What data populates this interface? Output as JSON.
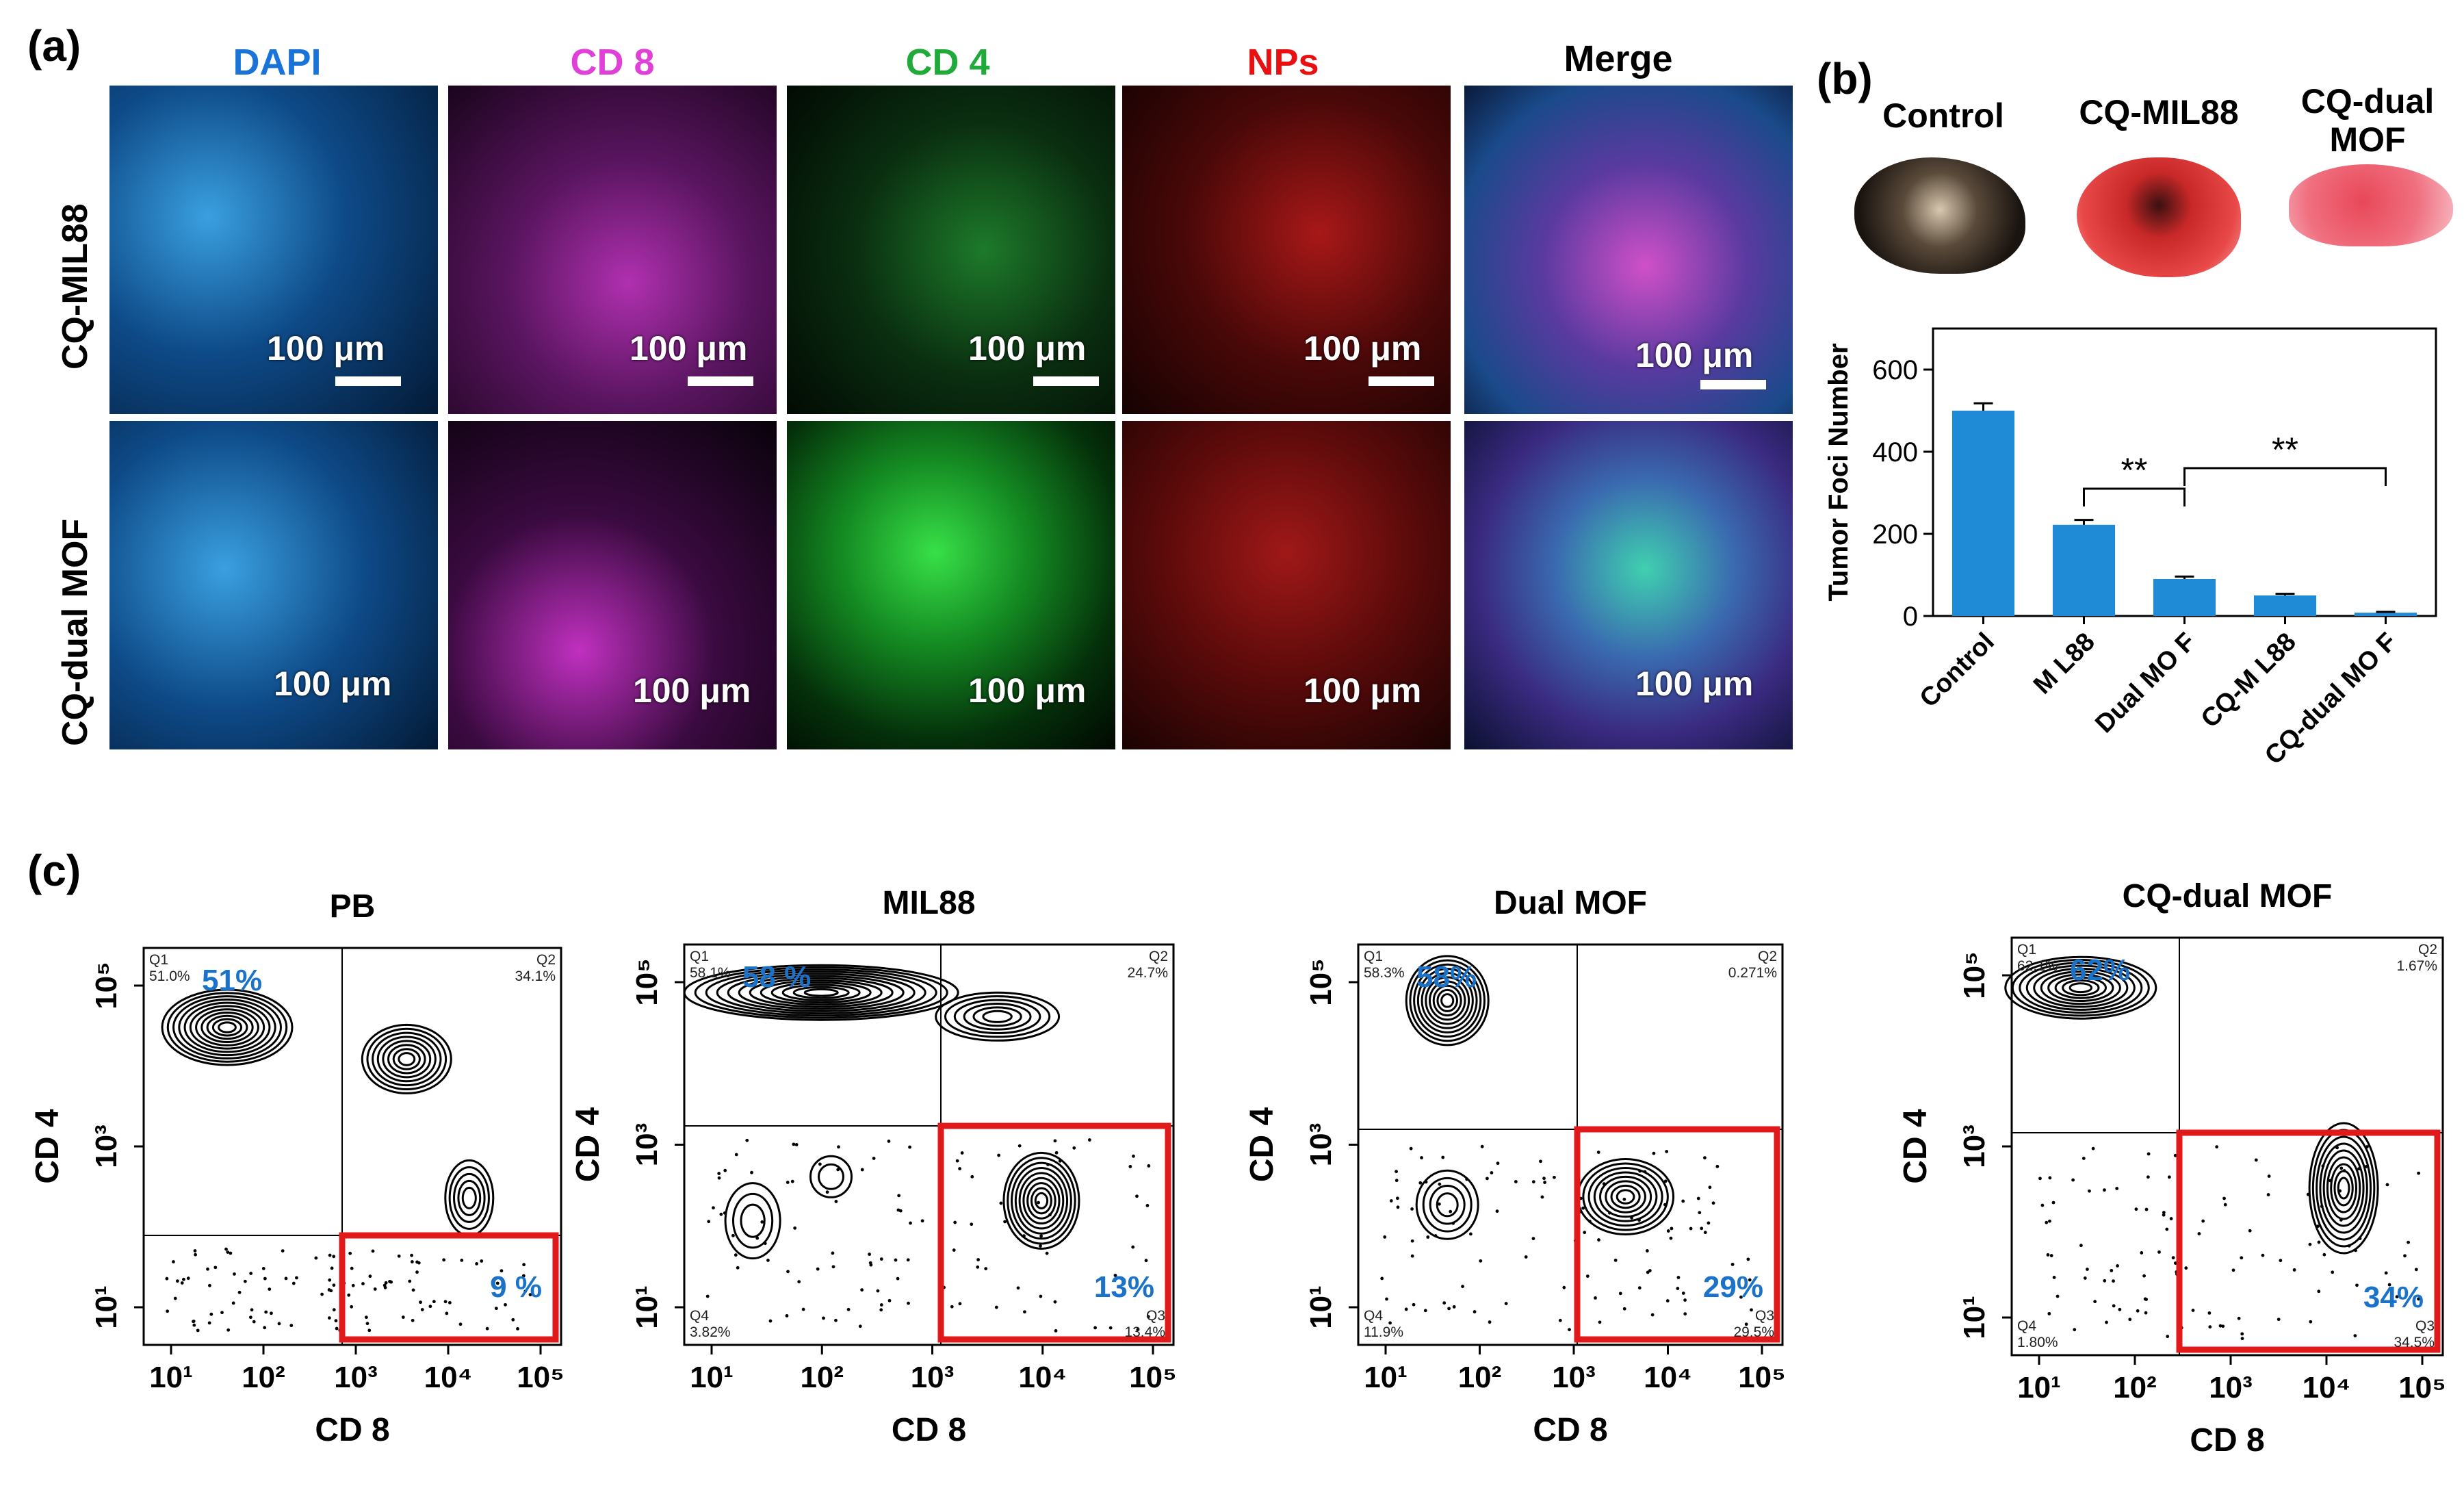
{
  "panel_a": {
    "label": "(a)",
    "columns": [
      {
        "label": "DAPI",
        "color": "#1a73d9"
      },
      {
        "label": "CD 8",
        "color": "#e040d8"
      },
      {
        "label": "CD 4",
        "color": "#1faa3a"
      },
      {
        "label": "NPs",
        "color": "#e81010"
      },
      {
        "label": "Merge",
        "color": "#000000"
      }
    ],
    "rows": [
      "CQ-MIL88",
      "CQ-dual MOF"
    ],
    "scale_label": "100 μm"
  },
  "panel_b": {
    "label": "(b)",
    "organs": [
      "Control",
      "CQ-MIL88",
      "CQ-dual\nMOF"
    ]
  },
  "panel_c": {
    "label": "(c)",
    "plots": [
      {
        "title": "PB",
        "q1": "Q1\n51.0%",
        "q2": "Q2\n34.1%",
        "q3": "",
        "q4": "",
        "big_q1": "51%",
        "big_q3": "9 %"
      },
      {
        "title": "MIL88",
        "q1": "Q1\n58.1%",
        "q2": "Q2\n24.7%",
        "q3": "Q3\n13.4%",
        "q4": "Q4\n3.82%",
        "big_q1": "58 %",
        "big_q3": "13%"
      },
      {
        "title": "Dual  MOF",
        "q1": "Q1\n58.3%",
        "q2": "Q2\n0.271%",
        "q3": "Q3\n29.5%",
        "q4": "Q4\n11.9%",
        "big_q1": "58%",
        "big_q3": "29%"
      },
      {
        "title": "CQ-dual MOF",
        "q1": "Q1\n62.1%",
        "q2": "Q2\n1.67%",
        "q3": "Q3\n34.5%",
        "q4": "Q4\n1.80%",
        "big_q1": "62%",
        "big_q3": "34%"
      }
    ],
    "xlabel": "CD 8",
    "ylabel": "CD 4",
    "x_ticks": [
      "10¹",
      "10²",
      "10³",
      "10⁴",
      "10⁵"
    ],
    "y_ticks": [
      "10¹",
      "10³",
      "10⁵"
    ]
  },
  "chart_data": {
    "type": "bar",
    "categories": [
      "Control",
      "M L88",
      "Dual MO F",
      "CQ-M L88",
      "CQ-dual MO F"
    ],
    "values": [
      500,
      222,
      90,
      50,
      8
    ],
    "errors": [
      18,
      12,
      6,
      4,
      2
    ],
    "ylabel": "Tumor Foci Number",
    "xlabel": "",
    "title": "",
    "ylim": [
      0,
      700
    ],
    "y_ticks": [
      0,
      200,
      400,
      600
    ],
    "bar_color": "#1f8bd6",
    "significance": [
      {
        "from": 1,
        "to": 2,
        "label": "**"
      },
      {
        "from": 2,
        "to": 4,
        "label": "**"
      }
    ]
  }
}
